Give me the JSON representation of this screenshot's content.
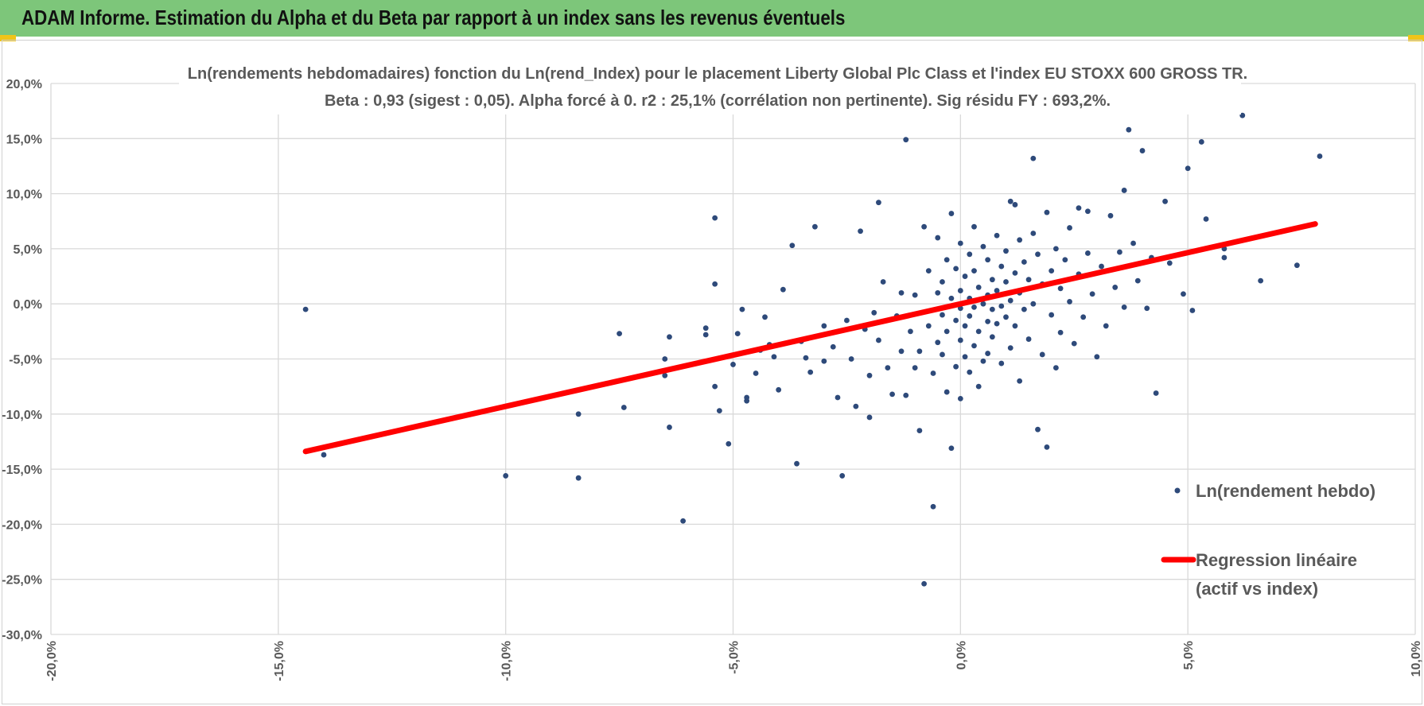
{
  "header": {
    "title": "ADAM Informe. Estimation du Alpha et du Beta par rapport à un index sans les revenus éventuels",
    "bg_color": "#7dc67a",
    "accent_color": "#f0c419"
  },
  "chart_data": {
    "type": "scatter",
    "title": "Ln(rendements hebdomadaires) fonction du Ln(rend_Index) pour le placement Liberty Global Plc Class  et l'index EU STOXX 600 GROSS TR.",
    "subtitle": "Beta : 0,93 (sigest : 0,05).  Alpha forcé à 0. r2 : 25,1% (corrélation non pertinente). Sig résidu FY : 693,2%.",
    "xlabel": "",
    "ylabel": "",
    "xlim": [
      -0.2,
      0.1
    ],
    "ylim": [
      -0.3,
      0.2
    ],
    "grid": true,
    "legend_position": "right",
    "x_ticks": [
      {
        "v": -0.2,
        "label": "-20,0%"
      },
      {
        "v": -0.15,
        "label": "-15,0%"
      },
      {
        "v": -0.1,
        "label": "-10,0%"
      },
      {
        "v": -0.05,
        "label": "-5,0%"
      },
      {
        "v": 0.0,
        "label": "0,0%"
      },
      {
        "v": 0.05,
        "label": "5,0%"
      },
      {
        "v": 0.1,
        "label": "10,0%"
      }
    ],
    "y_ticks": [
      {
        "v": 0.2,
        "label": "20,0%"
      },
      {
        "v": 0.15,
        "label": "15,0%"
      },
      {
        "v": 0.1,
        "label": "10,0%"
      },
      {
        "v": 0.05,
        "label": "5,0%"
      },
      {
        "v": 0.0,
        "label": "0,0%"
      },
      {
        "v": -0.05,
        "label": "-5,0%"
      },
      {
        "v": -0.1,
        "label": "-10,0%"
      },
      {
        "v": -0.15,
        "label": "-15,0%"
      },
      {
        "v": -0.2,
        "label": "-20,0%"
      },
      {
        "v": -0.25,
        "label": "-25,0%"
      },
      {
        "v": -0.3,
        "label": "-30,0%"
      }
    ],
    "series": [
      {
        "name": "Ln(rendement hebdo)",
        "kind": "points",
        "color": "#2e4a7a",
        "points": [
          [
            -0.144,
            -0.005
          ],
          [
            -0.14,
            -0.137
          ],
          [
            -0.1,
            -0.156
          ],
          [
            -0.084,
            -0.1
          ],
          [
            -0.084,
            -0.158
          ],
          [
            -0.075,
            -0.027
          ],
          [
            -0.074,
            -0.094
          ],
          [
            -0.065,
            -0.05
          ],
          [
            -0.065,
            -0.065
          ],
          [
            -0.064,
            -0.03
          ],
          [
            -0.064,
            -0.112
          ],
          [
            -0.061,
            -0.197
          ],
          [
            -0.056,
            -0.022
          ],
          [
            -0.056,
            -0.028
          ],
          [
            -0.054,
            0.078
          ],
          [
            -0.054,
            0.018
          ],
          [
            -0.054,
            -0.075
          ],
          [
            -0.053,
            -0.097
          ],
          [
            -0.051,
            -0.127
          ],
          [
            -0.05,
            -0.055
          ],
          [
            -0.049,
            -0.027
          ],
          [
            -0.048,
            -0.005
          ],
          [
            -0.047,
            -0.088
          ],
          [
            -0.047,
            -0.085
          ],
          [
            -0.045,
            -0.063
          ],
          [
            -0.044,
            -0.042
          ],
          [
            -0.043,
            -0.012
          ],
          [
            -0.042,
            -0.037
          ],
          [
            -0.041,
            -0.048
          ],
          [
            -0.04,
            -0.078
          ],
          [
            -0.039,
            0.013
          ],
          [
            -0.037,
            0.053
          ],
          [
            -0.036,
            -0.145
          ],
          [
            -0.035,
            -0.034
          ],
          [
            -0.034,
            -0.049
          ],
          [
            -0.033,
            -0.062
          ],
          [
            -0.032,
            0.07
          ],
          [
            -0.03,
            -0.02
          ],
          [
            -0.03,
            -0.052
          ],
          [
            -0.028,
            -0.039
          ],
          [
            -0.027,
            -0.085
          ],
          [
            -0.026,
            -0.156
          ],
          [
            -0.025,
            -0.015
          ],
          [
            -0.024,
            -0.05
          ],
          [
            -0.023,
            -0.093
          ],
          [
            -0.022,
            0.066
          ],
          [
            -0.021,
            -0.023
          ],
          [
            -0.02,
            -0.065
          ],
          [
            -0.02,
            -0.103
          ],
          [
            -0.019,
            -0.008
          ],
          [
            -0.018,
            0.092
          ],
          [
            -0.018,
            -0.033
          ],
          [
            -0.017,
            0.02
          ],
          [
            -0.016,
            -0.058
          ],
          [
            -0.015,
            -0.082
          ],
          [
            -0.014,
            -0.011
          ],
          [
            -0.013,
            0.01
          ],
          [
            -0.013,
            -0.043
          ],
          [
            -0.012,
            0.149
          ],
          [
            -0.012,
            -0.083
          ],
          [
            -0.011,
            -0.025
          ],
          [
            -0.01,
            0.008
          ],
          [
            -0.01,
            -0.058
          ],
          [
            -0.009,
            -0.043
          ],
          [
            -0.009,
            -0.115
          ],
          [
            -0.008,
            -0.254
          ],
          [
            -0.008,
            0.07
          ],
          [
            -0.007,
            0.03
          ],
          [
            -0.007,
            -0.02
          ],
          [
            -0.006,
            -0.063
          ],
          [
            -0.006,
            -0.184
          ],
          [
            -0.005,
            0.06
          ],
          [
            -0.005,
            0.01
          ],
          [
            -0.005,
            -0.035
          ],
          [
            -0.004,
            0.02
          ],
          [
            -0.004,
            -0.01
          ],
          [
            -0.004,
            -0.046
          ],
          [
            -0.003,
            0.04
          ],
          [
            -0.003,
            -0.025
          ],
          [
            -0.003,
            -0.08
          ],
          [
            -0.002,
            0.082
          ],
          [
            -0.002,
            0.005
          ],
          [
            -0.002,
            -0.131
          ],
          [
            -0.001,
            0.032
          ],
          [
            -0.001,
            -0.015
          ],
          [
            -0.001,
            -0.057
          ],
          [
            0.0,
            0.055
          ],
          [
            0.0,
            0.012
          ],
          [
            0.0,
            -0.004
          ],
          [
            0.0,
            -0.033
          ],
          [
            0.0,
            -0.086
          ],
          [
            0.001,
            0.025
          ],
          [
            0.001,
            -0.02
          ],
          [
            0.001,
            -0.048
          ],
          [
            0.002,
            0.045
          ],
          [
            0.002,
            0.005
          ],
          [
            0.002,
            -0.011
          ],
          [
            0.002,
            -0.062
          ],
          [
            0.003,
            0.07
          ],
          [
            0.003,
            0.03
          ],
          [
            0.003,
            -0.003
          ],
          [
            0.003,
            -0.038
          ],
          [
            0.004,
            0.015
          ],
          [
            0.004,
            -0.025
          ],
          [
            0.004,
            -0.075
          ],
          [
            0.005,
            0.052
          ],
          [
            0.005,
            0.0
          ],
          [
            0.005,
            -0.052
          ],
          [
            0.006,
            0.04
          ],
          [
            0.006,
            0.008
          ],
          [
            0.006,
            -0.016
          ],
          [
            0.006,
            -0.045
          ],
          [
            0.007,
            0.022
          ],
          [
            0.007,
            -0.005
          ],
          [
            0.007,
            -0.03
          ],
          [
            0.008,
            0.062
          ],
          [
            0.008,
            0.012
          ],
          [
            0.008,
            -0.018
          ],
          [
            0.009,
            0.034
          ],
          [
            0.009,
            -0.002
          ],
          [
            0.009,
            -0.054
          ],
          [
            0.01,
            0.048
          ],
          [
            0.01,
            0.02
          ],
          [
            0.01,
            -0.012
          ],
          [
            0.011,
            0.093
          ],
          [
            0.011,
            0.003
          ],
          [
            0.011,
            -0.04
          ],
          [
            0.012,
            0.028
          ],
          [
            0.012,
            0.09
          ],
          [
            0.012,
            -0.02
          ],
          [
            0.013,
            0.058
          ],
          [
            0.013,
            0.01
          ],
          [
            0.013,
            -0.07
          ],
          [
            0.014,
            0.038
          ],
          [
            0.014,
            -0.005
          ],
          [
            0.015,
            0.022
          ],
          [
            0.015,
            -0.032
          ],
          [
            0.016,
            0.132
          ],
          [
            0.016,
            0.064
          ],
          [
            0.016,
            0.0
          ],
          [
            0.017,
            0.045
          ],
          [
            0.017,
            -0.114
          ],
          [
            0.018,
            0.018
          ],
          [
            0.018,
            -0.046
          ],
          [
            0.019,
            0.083
          ],
          [
            0.019,
            -0.13
          ],
          [
            0.02,
            0.03
          ],
          [
            0.02,
            -0.01
          ],
          [
            0.021,
            0.05
          ],
          [
            0.021,
            -0.058
          ],
          [
            0.022,
            0.014
          ],
          [
            0.022,
            -0.026
          ],
          [
            0.023,
            0.04
          ],
          [
            0.024,
            0.069
          ],
          [
            0.024,
            0.002
          ],
          [
            0.025,
            -0.036
          ],
          [
            0.026,
            0.027
          ],
          [
            0.026,
            0.087
          ],
          [
            0.027,
            -0.012
          ],
          [
            0.028,
            0.046
          ],
          [
            0.028,
            0.084
          ],
          [
            0.029,
            0.009
          ],
          [
            0.03,
            -0.048
          ],
          [
            0.031,
            0.034
          ],
          [
            0.032,
            -0.02
          ],
          [
            0.033,
            0.08
          ],
          [
            0.034,
            0.015
          ],
          [
            0.035,
            0.047
          ],
          [
            0.036,
            -0.003
          ],
          [
            0.036,
            0.103
          ],
          [
            0.037,
            0.158
          ],
          [
            0.038,
            0.055
          ],
          [
            0.039,
            0.021
          ],
          [
            0.04,
            0.139
          ],
          [
            0.041,
            -0.004
          ],
          [
            0.042,
            0.042
          ],
          [
            0.043,
            -0.081
          ],
          [
            0.045,
            0.093
          ],
          [
            0.046,
            0.037
          ],
          [
            0.049,
            0.009
          ],
          [
            0.05,
            0.123
          ],
          [
            0.051,
            -0.006
          ],
          [
            0.053,
            0.147
          ],
          [
            0.054,
            0.077
          ],
          [
            0.058,
            0.05
          ],
          [
            0.058,
            0.042
          ],
          [
            0.062,
            0.171
          ],
          [
            0.066,
            0.021
          ],
          [
            0.074,
            0.035
          ],
          [
            0.079,
            0.134
          ]
        ]
      },
      {
        "name": "Regression linéaire (actif vs index)",
        "kind": "line",
        "color": "#ff0000",
        "beta": 0.93,
        "x_range": [
          -0.144,
          0.078
        ]
      }
    ],
    "legend": {
      "scatter_label": "Ln(rendement hebdo)",
      "line_label_1": "Regression linéaire",
      "line_label_2": "(actif vs index)"
    }
  }
}
